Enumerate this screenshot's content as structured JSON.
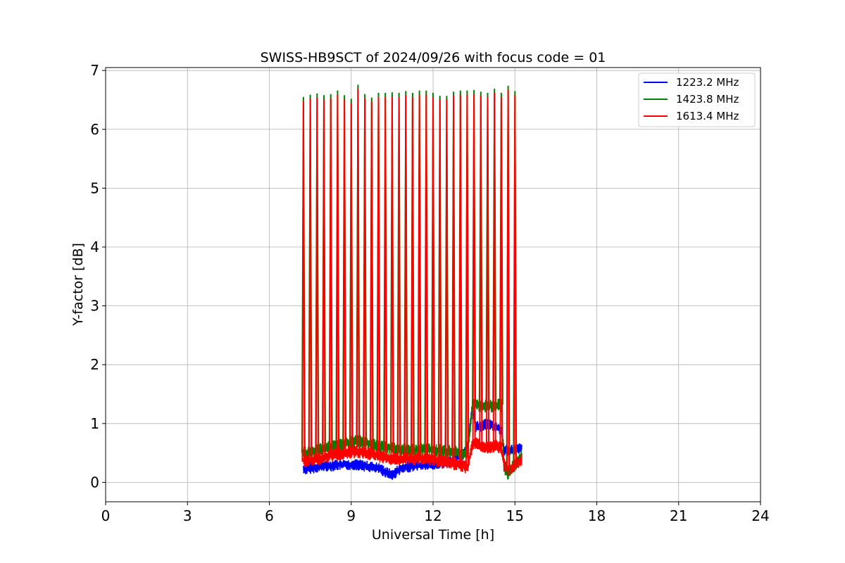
{
  "chart_data": {
    "type": "line",
    "title": "SWISS-HB9SCT of 2024/09/26 with focus code = 01",
    "xlabel": "Universal Time [h]",
    "ylabel": "Y-factor [dB]",
    "xlim": [
      0,
      24
    ],
    "ylim": [
      -0.33,
      7.05
    ],
    "xticks": [
      0,
      3,
      6,
      9,
      12,
      15,
      18,
      21,
      24
    ],
    "yticks": [
      0,
      1,
      2,
      3,
      4,
      5,
      6,
      7
    ],
    "grid": true,
    "legend_position": "top-right",
    "spike_times": [
      7.25,
      7.5,
      7.75,
      8.0,
      8.25,
      8.5,
      8.75,
      9.0,
      9.25,
      9.5,
      9.75,
      10.0,
      10.25,
      10.5,
      10.75,
      11.0,
      11.25,
      11.5,
      11.75,
      12.0,
      12.25,
      12.5,
      12.75,
      13.0,
      13.25,
      13.5,
      13.75,
      14.0,
      14.25,
      14.5,
      14.75,
      15.0
    ],
    "spike_peaks": [
      6.53,
      6.57,
      6.59,
      6.56,
      6.58,
      6.64,
      6.56,
      6.5,
      6.74,
      6.58,
      6.52,
      6.6,
      6.6,
      6.61,
      6.6,
      6.63,
      6.6,
      6.64,
      6.64,
      6.6,
      6.55,
      6.55,
      6.62,
      6.64,
      6.64,
      6.65,
      6.62,
      6.6,
      6.67,
      6.6,
      6.72,
      6.63
    ],
    "series": [
      {
        "name": "1223.2 MHz",
        "color": "#0000ff",
        "x": [
          7.25,
          7.5,
          7.75,
          8.0,
          8.25,
          8.5,
          8.75,
          9.0,
          9.25,
          9.5,
          9.75,
          10.0,
          10.25,
          10.5,
          10.75,
          11.0,
          11.25,
          11.5,
          11.75,
          12.0,
          12.25,
          12.5,
          12.75,
          13.0,
          13.25,
          13.45,
          13.55,
          13.75,
          14.0,
          14.25,
          14.5,
          14.6,
          14.75,
          15.0,
          15.25
        ],
        "y": [
          0.22,
          0.24,
          0.26,
          0.28,
          0.28,
          0.3,
          0.3,
          0.3,
          0.3,
          0.28,
          0.26,
          0.24,
          0.18,
          0.12,
          0.22,
          0.25,
          0.28,
          0.3,
          0.3,
          0.3,
          0.32,
          0.35,
          0.4,
          0.45,
          0.55,
          1.35,
          0.95,
          0.95,
          1.0,
          0.95,
          0.9,
          0.55,
          0.55,
          0.55,
          0.58
        ],
        "band": 0.07
      },
      {
        "name": "1423.8 MHz",
        "color": "#008000",
        "x": [
          7.25,
          7.5,
          7.75,
          8.0,
          8.25,
          8.5,
          8.75,
          9.0,
          9.25,
          9.5,
          9.75,
          10.0,
          10.25,
          10.5,
          10.75,
          11.0,
          11.25,
          11.5,
          11.75,
          12.0,
          12.25,
          12.5,
          12.75,
          13.0,
          13.25,
          13.45,
          13.55,
          13.75,
          14.0,
          14.25,
          14.5,
          14.6,
          14.75,
          15.0,
          15.25
        ],
        "y": [
          0.5,
          0.52,
          0.55,
          0.58,
          0.6,
          0.62,
          0.65,
          0.68,
          0.7,
          0.68,
          0.65,
          0.62,
          0.6,
          0.58,
          0.56,
          0.55,
          0.55,
          0.55,
          0.56,
          0.55,
          0.54,
          0.53,
          0.52,
          0.5,
          0.48,
          1.3,
          1.32,
          1.3,
          1.3,
          1.3,
          1.32,
          0.25,
          0.15,
          0.3,
          0.45
        ],
        "band": 0.08
      },
      {
        "name": "1613.4 MHz",
        "color": "#ff0000",
        "x": [
          7.25,
          7.5,
          7.75,
          8.0,
          8.25,
          8.5,
          8.75,
          9.0,
          9.25,
          9.5,
          9.75,
          10.0,
          10.25,
          10.5,
          10.75,
          11.0,
          11.25,
          11.5,
          11.75,
          12.0,
          12.25,
          12.5,
          12.75,
          13.0,
          13.25,
          13.45,
          13.55,
          13.75,
          14.0,
          14.25,
          14.5,
          14.6,
          14.75,
          15.0,
          15.25
        ],
        "y": [
          0.35,
          0.38,
          0.4,
          0.42,
          0.45,
          0.48,
          0.5,
          0.52,
          0.52,
          0.5,
          0.48,
          0.45,
          0.42,
          0.4,
          0.4,
          0.4,
          0.4,
          0.4,
          0.4,
          0.38,
          0.36,
          0.34,
          0.32,
          0.3,
          0.25,
          0.65,
          0.68,
          0.62,
          0.6,
          0.62,
          0.6,
          0.3,
          0.2,
          0.3,
          0.4
        ],
        "band": 0.08
      }
    ]
  }
}
